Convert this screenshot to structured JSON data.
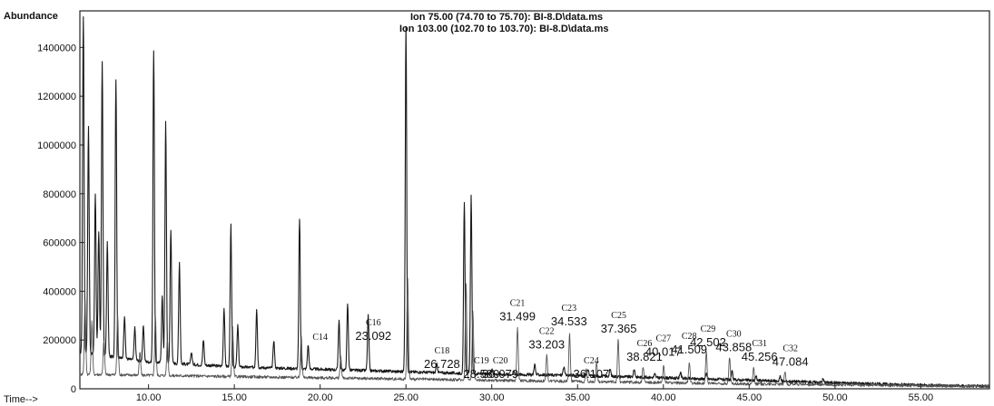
{
  "chart_data": {
    "type": "line",
    "ylabel": "Abundance",
    "xlabel": "Time-->",
    "legend": [
      "Ion 75.00 (74.70 to 75.70): BI-8.D\\data.ms",
      "Ion 103.00 (102.70 to 103.70): BI-8.D\\data.ms"
    ],
    "xlim": [
      6.0,
      59.0
    ],
    "ylim": [
      0,
      1550000
    ],
    "x_ticks": [
      10,
      15,
      20,
      25,
      30,
      35,
      40,
      45,
      50,
      55
    ],
    "x_tick_labels": [
      "10.00",
      "15.00",
      "20.00",
      "25.00",
      "30.00",
      "35.00",
      "40.00",
      "45.00",
      "50.00",
      "55.00"
    ],
    "y_ticks": [
      0,
      200000,
      400000,
      600000,
      800000,
      1000000,
      1200000,
      1400000
    ],
    "y_tick_labels": [
      "0",
      "200000",
      "400000",
      "600000",
      "800000",
      "1000000",
      "1200000",
      "1400000"
    ],
    "grid": false,
    "series": [
      {
        "name": "Ion 75.00 (74.70 to 75.70): BI-8.D\\data.ms",
        "baseline": [
          [
            6.0,
            150000
          ],
          [
            10,
            110000
          ],
          [
            15,
            90000
          ],
          [
            20,
            80000
          ],
          [
            25,
            70000
          ],
          [
            30,
            60000
          ],
          [
            35,
            55000
          ],
          [
            40,
            45000
          ],
          [
            45,
            35000
          ],
          [
            50,
            25000
          ],
          [
            55,
            15000
          ],
          [
            59,
            10000
          ]
        ],
        "peaks": [
          [
            6.2,
            1530000
          ],
          [
            6.5,
            1080000
          ],
          [
            6.9,
            800000
          ],
          [
            7.1,
            640000
          ],
          [
            7.3,
            1340000
          ],
          [
            7.6,
            600000
          ],
          [
            8.1,
            1270000
          ],
          [
            8.6,
            300000
          ],
          [
            9.2,
            250000
          ],
          [
            9.7,
            260000
          ],
          [
            10.3,
            1390000
          ],
          [
            10.8,
            380000
          ],
          [
            11.0,
            1100000
          ],
          [
            11.3,
            650000
          ],
          [
            11.8,
            520000
          ],
          [
            12.5,
            150000
          ],
          [
            13.2,
            200000
          ],
          [
            14.4,
            330000
          ],
          [
            14.8,
            670000
          ],
          [
            15.2,
            260000
          ],
          [
            16.3,
            330000
          ],
          [
            17.3,
            200000
          ],
          [
            18.8,
            700000
          ],
          [
            19.3,
            180000
          ],
          [
            21.1,
            280000
          ],
          [
            21.6,
            350000
          ],
          [
            22.8,
            300000
          ],
          [
            25.0,
            1480000
          ],
          [
            26.8,
            100000
          ],
          [
            28.4,
            760000
          ],
          [
            28.8,
            790000
          ],
          [
            30.0,
            80000
          ],
          [
            31.3,
            70000
          ],
          [
            32.5,
            100000
          ],
          [
            34.2,
            90000
          ],
          [
            35.6,
            80000
          ],
          [
            36.9,
            80000
          ],
          [
            38.3,
            80000
          ],
          [
            39.5,
            60000
          ],
          [
            41.0,
            70000
          ],
          [
            42.5,
            60000
          ],
          [
            44.0,
            70000
          ],
          [
            45.4,
            50000
          ],
          [
            46.8,
            50000
          ],
          [
            49.3,
            40000
          ]
        ]
      },
      {
        "name": "Ion 103.00 (102.70 to 103.70): BI-8.D\\data.ms",
        "baseline": [
          [
            6.0,
            60000
          ],
          [
            15,
            50000
          ],
          [
            25,
            40000
          ],
          [
            35,
            30000
          ],
          [
            45,
            20000
          ],
          [
            59,
            10000
          ]
        ],
        "peaks": [
          [
            6.3,
            370000
          ],
          [
            6.7,
            280000
          ],
          [
            7.4,
            200000
          ],
          [
            8.2,
            300000
          ],
          [
            9.5,
            150000
          ],
          [
            10.4,
            300000
          ],
          [
            11.1,
            200000
          ],
          [
            14.9,
            250000
          ],
          [
            18.9,
            220000
          ],
          [
            21.2,
            130000
          ],
          [
            25.1,
            450000
          ],
          [
            28.5,
            430000
          ],
          [
            28.9,
            320000
          ],
          [
            31.499,
            250000
          ],
          [
            33.203,
            140000
          ],
          [
            34.533,
            230000
          ],
          [
            35.5,
            80000
          ],
          [
            36.107,
            110000
          ],
          [
            37.365,
            200000
          ],
          [
            38.821,
            90000
          ],
          [
            40.017,
            100000
          ],
          [
            41.509,
            110000
          ],
          [
            42.502,
            150000
          ],
          [
            43.858,
            130000
          ],
          [
            45.256,
            90000
          ],
          [
            47.084,
            70000
          ]
        ]
      }
    ],
    "annotations": [
      {
        "label": "C14",
        "rt": "",
        "x": 20.0,
        "y": 185000
      },
      {
        "label": "C16",
        "rt": "23.092",
        "x": 23.1,
        "y": 185000
      },
      {
        "label": "C18",
        "rt": "26.728",
        "x": 27.1,
        "y": 70000
      },
      {
        "label": "C19",
        "rt": "28.580",
        "x": 29.4,
        "y": 30000
      },
      {
        "label": "C20",
        "rt": "30.079",
        "x": 30.5,
        "y": 30000
      },
      {
        "label": "C21",
        "rt": "31.499",
        "x": 31.5,
        "y": 265000
      },
      {
        "label": "C22",
        "rt": "33.203",
        "x": 33.2,
        "y": 150000
      },
      {
        "label": "C23",
        "rt": "34.533",
        "x": 34.5,
        "y": 245000
      },
      {
        "label": "C24",
        "rt": "36.107",
        "x": 35.8,
        "y": 30000
      },
      {
        "label": "C25",
        "rt": "37.365",
        "x": 37.4,
        "y": 215000
      },
      {
        "label": "C26",
        "rt": "38.821",
        "x": 38.9,
        "y": 100000
      },
      {
        "label": "C27",
        "rt": "40.017",
        "x": 40.0,
        "y": 120000
      },
      {
        "label": "C28",
        "rt": "41.509",
        "x": 41.5,
        "y": 130000
      },
      {
        "label": "C29",
        "rt": "42.502",
        "x": 42.6,
        "y": 160000
      },
      {
        "label": "C30",
        "rt": "43.858",
        "x": 44.1,
        "y": 140000
      },
      {
        "label": "C31",
        "rt": "45.256",
        "x": 45.6,
        "y": 100000
      },
      {
        "label": "C32",
        "rt": "47.084",
        "x": 47.4,
        "y": 80000
      }
    ]
  }
}
